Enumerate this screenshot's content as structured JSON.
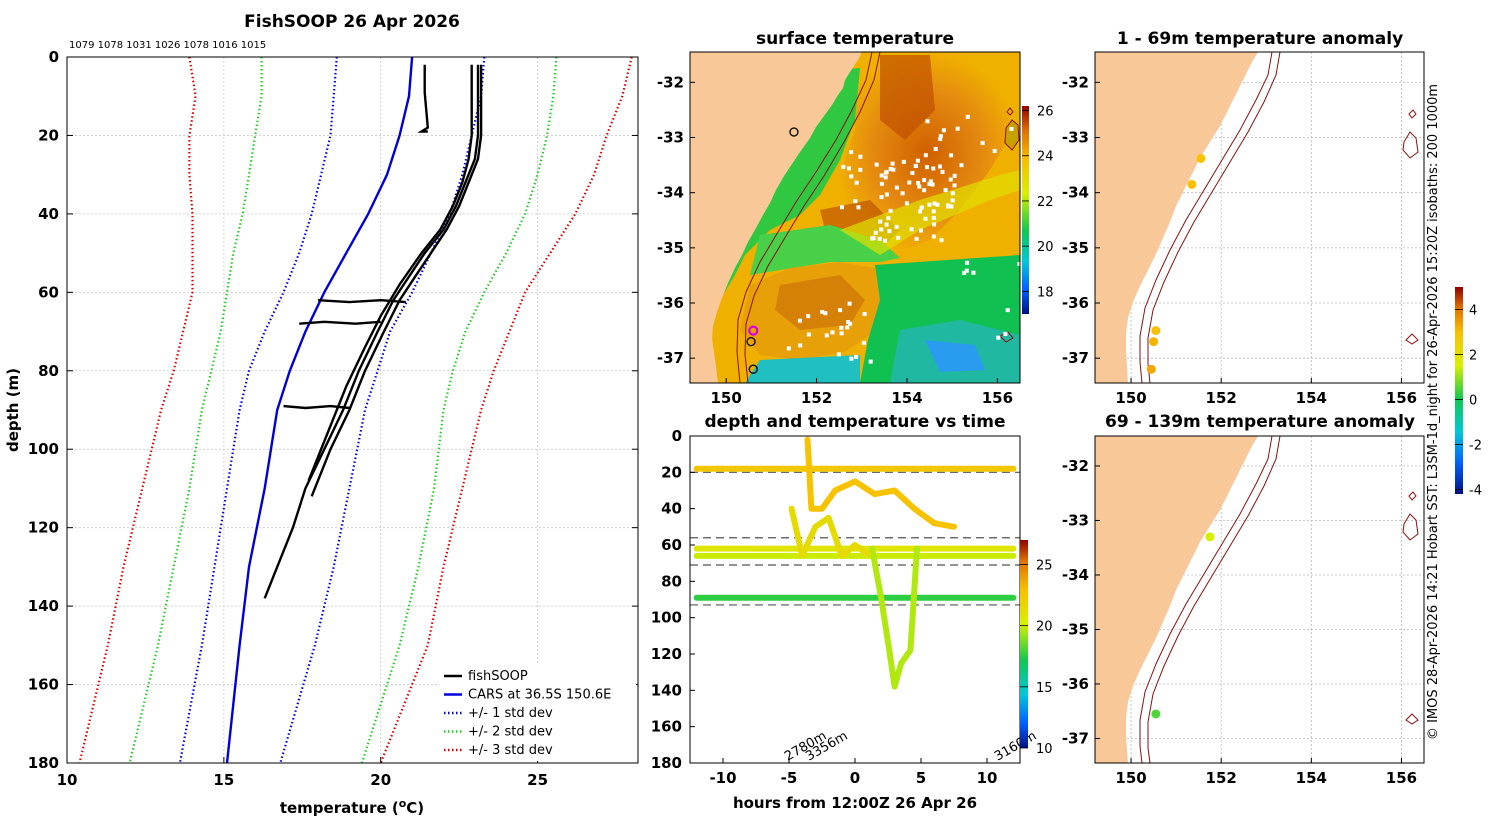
{
  "figure_title": "FishSOOP 26 Apr 2026",
  "vessel_ids": "1079 1078 1031 1026 1078 1016 1015",
  "side_note": "© IMOS 28-Apr-2026 14:21 Hobart SST: L3SM-1d_night for 26-Apr-2026 15:20Z isobaths: 200  1000m",
  "chart_data": [
    {
      "id": "profile",
      "type": "line",
      "title": "FishSOOP 26 Apr 2026",
      "xlabel": "temperature (°C)",
      "ylabel": "depth (m)",
      "xlim": [
        10,
        28.2
      ],
      "ylim": [
        180,
        0
      ],
      "xticks": [
        "10",
        "15",
        "20",
        "25"
      ],
      "yticks": [
        "0",
        "20",
        "40",
        "60",
        "80",
        "100",
        "120",
        "140",
        "160",
        "180"
      ],
      "legend": [
        "fishSOOP",
        "CARS at 36.5S 150.6E",
        "+/- 1 std dev",
        "+/- 2 std dev",
        "+/- 3 std dev"
      ],
      "legend_position": "bottom-right",
      "series": [
        {
          "name": "CARS at 36.5S 150.6E",
          "color": "#0000dd",
          "style": "solid",
          "temp": [
            21.0,
            20.9,
            20.6,
            20.2,
            19.6,
            18.9,
            18.2,
            17.6,
            17.1,
            16.7,
            16.3,
            15.8,
            15.5,
            15.1
          ],
          "depth": [
            0,
            10,
            20,
            30,
            40,
            50,
            60,
            70,
            80,
            90,
            110,
            130,
            150,
            180
          ]
        },
        {
          "name": "-1 std",
          "color": "#0000dd",
          "style": "dotted",
          "temp": [
            18.6,
            18.5,
            18.4,
            18.1,
            17.8,
            17.4,
            16.9,
            16.3,
            15.8,
            15.5,
            15.1,
            14.7,
            14.3,
            13.6
          ],
          "depth": [
            0,
            10,
            20,
            30,
            40,
            50,
            60,
            70,
            80,
            90,
            110,
            130,
            150,
            180
          ]
        },
        {
          "name": "+1 std",
          "color": "#0000dd",
          "style": "dotted",
          "temp": [
            23.3,
            23.2,
            22.9,
            22.6,
            22.2,
            21.6,
            21.0,
            20.3,
            19.9,
            19.5,
            19.0,
            18.5,
            17.9,
            16.8
          ],
          "depth": [
            0,
            10,
            20,
            30,
            40,
            50,
            60,
            70,
            80,
            90,
            110,
            130,
            150,
            180
          ]
        },
        {
          "name": "-2 std",
          "color": "#22cc22",
          "style": "dotted",
          "temp": [
            16.2,
            16.2,
            16.0,
            15.8,
            15.6,
            15.3,
            15.1,
            14.9,
            14.6,
            14.3,
            13.9,
            13.4,
            12.9,
            12.0
          ],
          "depth": [
            0,
            10,
            20,
            30,
            40,
            50,
            60,
            70,
            80,
            90,
            110,
            130,
            150,
            180
          ]
        },
        {
          "name": "+2 std",
          "color": "#22cc22",
          "style": "dotted",
          "temp": [
            25.6,
            25.5,
            25.3,
            25.0,
            24.6,
            24.0,
            23.3,
            22.7,
            22.3,
            22.0,
            21.7,
            21.2,
            20.6,
            19.4
          ],
          "depth": [
            0,
            10,
            20,
            30,
            40,
            50,
            60,
            70,
            80,
            90,
            110,
            130,
            150,
            180
          ]
        },
        {
          "name": "-3 std",
          "color": "#dd0000",
          "style": "dotted",
          "temp": [
            13.9,
            14.1,
            13.9,
            13.9,
            14.0,
            14.0,
            14.0,
            13.7,
            13.4,
            13.0,
            12.4,
            11.8,
            11.3,
            10.4
          ],
          "depth": [
            0,
            10,
            20,
            30,
            40,
            50,
            60,
            70,
            80,
            90,
            110,
            130,
            150,
            180
          ]
        },
        {
          "name": "+3 std",
          "color": "#dd0000",
          "style": "dotted",
          "temp": [
            28.0,
            27.7,
            27.2,
            26.8,
            26.2,
            25.4,
            24.6,
            24.1,
            23.6,
            23.2,
            22.6,
            22.0,
            21.5,
            20.0
          ],
          "depth": [
            0,
            10,
            20,
            30,
            40,
            50,
            60,
            70,
            80,
            90,
            110,
            130,
            150,
            180
          ]
        },
        {
          "name": "fishSOOP",
          "color": "#000000",
          "style": "thick",
          "temp": [
            23.1,
            23.1,
            23.0,
            22.7,
            22.4,
            22.0,
            21.4,
            20.9,
            20.4,
            19.9,
            19.3,
            18.8,
            18.2,
            17.6,
            17.2,
            16.7,
            16.3
          ],
          "depth": [
            2,
            20,
            26,
            32,
            38,
            44,
            50,
            56,
            62,
            70,
            80,
            90,
            100,
            110,
            120,
            130,
            138
          ]
        },
        {
          "name": "fishSOOP-2",
          "color": "#000000",
          "style": "thick",
          "temp": [
            23.2,
            23.2,
            23.1,
            22.8,
            22.5,
            22.1,
            21.6,
            21.1,
            20.6,
            20.1,
            19.5,
            19.0,
            18.4,
            17.8
          ],
          "depth": [
            2,
            20,
            26,
            32,
            38,
            44,
            50,
            56,
            62,
            70,
            80,
            90,
            100,
            112
          ]
        },
        {
          "name": "fishSOOP-3",
          "color": "#000000",
          "style": "thick",
          "temp": [
            22.9,
            22.9,
            22.8,
            22.6,
            22.3,
            21.9,
            21.3,
            20.6,
            20.0,
            19.5,
            18.9,
            18.3,
            17.7
          ],
          "depth": [
            2,
            20,
            26,
            32,
            38,
            44,
            50,
            58,
            66,
            74,
            84,
            96,
            108
          ]
        },
        {
          "name": "fishSOOP-short",
          "color": "#000000",
          "style": "thick",
          "temp": [
            21.4,
            21.4,
            21.5,
            21.3,
            21.5
          ],
          "depth": [
            2,
            9,
            18,
            19,
            19
          ]
        },
        {
          "name": "fishSOOP-h63",
          "color": "#000000",
          "style": "thick",
          "temp": [
            18.0,
            19.0,
            20.0,
            20.8
          ],
          "depth": [
            62,
            62.5,
            62,
            62.5
          ]
        },
        {
          "name": "fishSOOP-h68",
          "color": "#000000",
          "style": "thick",
          "temp": [
            17.4,
            18.2,
            19.2,
            20.0
          ],
          "depth": [
            68,
            67.5,
            68,
            67.5
          ]
        },
        {
          "name": "fishSOOP-h89",
          "color": "#000000",
          "style": "thick",
          "temp": [
            16.9,
            17.6,
            18.4,
            19.0
          ],
          "depth": [
            89,
            89.5,
            89,
            89.5
          ]
        }
      ]
    },
    {
      "id": "sst_map",
      "type": "heatmap",
      "title": "surface temperature",
      "xlim": [
        149.2,
        156.5
      ],
      "ylim": [
        -37.45,
        -31.45
      ],
      "xticks": [
        "150",
        "152",
        "154",
        "156"
      ],
      "yticks": [
        "-32",
        "-33",
        "-34",
        "-35",
        "-36",
        "-37"
      ],
      "colorbar_range": [
        17,
        26.2
      ],
      "colorbar_ticks": [
        "18",
        "20",
        "22",
        "24",
        "26"
      ],
      "profile_locations": [
        {
          "lon": 150.6,
          "lat": -36.5,
          "color": "#dd00dd"
        },
        {
          "lon": 150.55,
          "lat": -36.7,
          "color": "#000000"
        },
        {
          "lon": 150.6,
          "lat": -37.2,
          "color": "#000000"
        },
        {
          "lon": 151.5,
          "lat": -32.9,
          "color": "#000000"
        }
      ]
    },
    {
      "id": "time_depth",
      "type": "scatter",
      "title": "depth and temperature vs time",
      "xlabel": "hours from 12:00Z 26 Apr 26",
      "xlim": [
        -12.5,
        12.5
      ],
      "ylim": [
        180,
        0
      ],
      "xticks": [
        "-10",
        "-5",
        "0",
        "5",
        "10"
      ],
      "yticks": [
        "0",
        "20",
        "40",
        "60",
        "80",
        "100",
        "120",
        "140",
        "160",
        "180"
      ],
      "dashed_depths": [
        20,
        56,
        71,
        93
      ],
      "colorbar_range": [
        10,
        27
      ],
      "colorbar_ticks": [
        "10",
        "15",
        "20",
        "25"
      ],
      "bottom_depth_labels": [
        {
          "hour": -5.1,
          "text": "2780m"
        },
        {
          "hour": -3.5,
          "text": "3356m"
        },
        {
          "hour": 10.8,
          "text": "3160m"
        }
      ],
      "tracks": [
        {
          "temp": 22.5,
          "hours": [
            -12,
            -6,
            0,
            6,
            12
          ],
          "depth": [
            18,
            18,
            18,
            18,
            18
          ]
        },
        {
          "temp": 20.8,
          "hours": [
            -12,
            -5,
            0,
            5,
            12
          ],
          "depth": [
            62,
            62,
            62,
            62,
            62
          ]
        },
        {
          "temp": 20.0,
          "hours": [
            -12,
            -5,
            0,
            5,
            12
          ],
          "depth": [
            66,
            66,
            66,
            66,
            66
          ]
        },
        {
          "temp": 17.6,
          "hours": [
            -12,
            -5,
            0,
            5,
            12
          ],
          "depth": [
            89,
            89,
            89,
            89,
            89
          ]
        },
        {
          "temp": 22.8,
          "hours": [
            -3.6,
            -3.3,
            -2.5,
            -1.5,
            0,
            1.5,
            3.0,
            4.5,
            6.0,
            7.5
          ],
          "depth": [
            2,
            40,
            40,
            30,
            25,
            32,
            30,
            40,
            48,
            50
          ]
        },
        {
          "temp": 19.6,
          "hours": [
            1.3,
            2.0,
            2.6,
            3.0,
            3.5,
            4.2,
            4.7
          ],
          "depth": [
            62,
            90,
            118,
            138,
            125,
            118,
            62
          ]
        },
        {
          "temp": 21.4,
          "hours": [
            -4.8,
            -4.0,
            -3.0,
            -2.0,
            -1.0,
            0.0,
            1.0
          ],
          "depth": [
            40,
            66,
            50,
            45,
            66,
            60,
            65
          ]
        }
      ]
    },
    {
      "id": "anom_shallow",
      "type": "scatter",
      "title": "1 - 69m temperature anomaly",
      "xlim": [
        149.2,
        156.5
      ],
      "ylim": [
        -37.45,
        -31.45
      ],
      "xticks": [
        "150",
        "152",
        "154",
        "156"
      ],
      "yticks": [
        "-32",
        "-33",
        "-34",
        "-35",
        "-36",
        "-37"
      ],
      "points": [
        {
          "lon": 151.55,
          "lat": -33.38,
          "anom": 2.7
        },
        {
          "lon": 151.35,
          "lat": -33.85,
          "anom": 2.8
        },
        {
          "lon": 150.55,
          "lat": -36.5,
          "anom": 2.8
        },
        {
          "lon": 150.5,
          "lat": -36.7,
          "anom": 3.0
        },
        {
          "lon": 150.45,
          "lat": -37.2,
          "anom": 3.2
        }
      ]
    },
    {
      "id": "anom_deep",
      "type": "scatter",
      "title": "69 - 139m temperature anomaly",
      "xlim": [
        149.2,
        156.5
      ],
      "ylim": [
        -37.45,
        -31.45
      ],
      "xticks": [
        "150",
        "152",
        "154",
        "156"
      ],
      "yticks": [
        "-32",
        "-33",
        "-34",
        "-35",
        "-36",
        "-37"
      ],
      "colorbar_range": [
        -4.2,
        5.0
      ],
      "colorbar_ticks": [
        "-4",
        "-2",
        "0",
        "2",
        "4"
      ],
      "points": [
        {
          "lon": 151.75,
          "lat": -33.3,
          "anom": 1.3
        },
        {
          "lon": 150.55,
          "lat": -36.55,
          "anom": 0.2
        }
      ]
    }
  ]
}
